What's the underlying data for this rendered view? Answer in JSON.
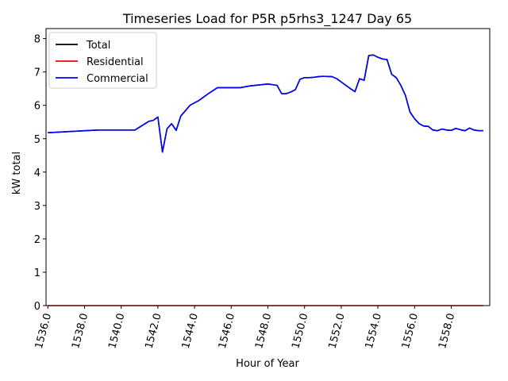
{
  "chart_data": {
    "type": "line",
    "title": "Timeseries Load for P5R p5rhs3_1247  Day 65",
    "xlabel": "Hour of Year",
    "ylabel": "kW total",
    "xlim": [
      1535.9,
      1560.1
    ],
    "ylim": [
      0,
      8.3
    ],
    "xticks": [
      1536,
      1538,
      1540,
      1542,
      1544,
      1546,
      1548,
      1550,
      1552,
      1554,
      1556,
      1558
    ],
    "xtick_labels": [
      "1536.0",
      "1538.0",
      "1540.0",
      "1542.0",
      "1544.0",
      "1546.0",
      "1548.0",
      "1550.0",
      "1552.0",
      "1554.0",
      "1556.0",
      "1558.0"
    ],
    "yticks": [
      0,
      1,
      2,
      3,
      4,
      5,
      6,
      7,
      8
    ],
    "ytick_labels": [
      "0",
      "1",
      "2",
      "3",
      "4",
      "5",
      "6",
      "7",
      "8"
    ],
    "grid": false,
    "legend_position": "top-left",
    "series": [
      {
        "name": "Total",
        "color": "#000000",
        "x": [
          1536.0,
          1537.0,
          1538.0,
          1538.75,
          1539.5,
          1540.0,
          1540.75,
          1541.5,
          1541.75,
          1542.0,
          1542.25,
          1542.5,
          1542.75,
          1543.0,
          1543.25,
          1543.75,
          1544.25,
          1544.75,
          1545.25,
          1546.0,
          1546.5,
          1547.0,
          1547.5,
          1548.0,
          1548.5,
          1548.75,
          1549.0,
          1549.25,
          1549.5,
          1549.75,
          1550.0,
          1550.25,
          1550.5,
          1550.75,
          1551.0,
          1551.5,
          1551.75,
          1552.0,
          1552.25,
          1552.5,
          1552.75,
          1553.0,
          1553.25,
          1553.5,
          1553.75,
          1554.0,
          1554.25,
          1554.5,
          1554.75,
          1555.0,
          1555.25,
          1555.5,
          1555.75,
          1556.0,
          1556.25,
          1556.5,
          1556.75,
          1557.0,
          1557.25,
          1557.5,
          1557.75,
          1558.0,
          1558.25,
          1558.5,
          1558.75,
          1559.0,
          1559.25,
          1559.5,
          1559.75
        ],
        "y": [
          5.18,
          5.21,
          5.24,
          5.26,
          5.26,
          5.26,
          5.26,
          5.52,
          5.55,
          5.65,
          4.6,
          5.3,
          5.45,
          5.25,
          5.68,
          6.0,
          6.15,
          6.35,
          6.53,
          6.53,
          6.53,
          6.58,
          6.61,
          6.64,
          6.6,
          6.35,
          6.35,
          6.4,
          6.47,
          6.78,
          6.83,
          6.83,
          6.84,
          6.86,
          6.87,
          6.86,
          6.8,
          6.7,
          6.6,
          6.5,
          6.41,
          6.8,
          6.75,
          7.49,
          7.51,
          7.44,
          7.39,
          7.37,
          6.93,
          6.83,
          6.6,
          6.3,
          5.8,
          5.6,
          5.45,
          5.38,
          5.37,
          5.26,
          5.24,
          5.29,
          5.26,
          5.25,
          5.31,
          5.27,
          5.24,
          5.32,
          5.26,
          5.24,
          5.24
        ]
      },
      {
        "name": "Residential",
        "color": "#ff0000",
        "x": [
          1536.0,
          1559.75
        ],
        "y": [
          0.0,
          0.0
        ]
      },
      {
        "name": "Commercial",
        "color": "#0000ff",
        "x": [
          1536.0,
          1537.0,
          1538.0,
          1538.75,
          1539.5,
          1540.0,
          1540.75,
          1541.5,
          1541.75,
          1542.0,
          1542.25,
          1542.5,
          1542.75,
          1543.0,
          1543.25,
          1543.75,
          1544.25,
          1544.75,
          1545.25,
          1546.0,
          1546.5,
          1547.0,
          1547.5,
          1548.0,
          1548.5,
          1548.75,
          1549.0,
          1549.25,
          1549.5,
          1549.75,
          1550.0,
          1550.25,
          1550.5,
          1550.75,
          1551.0,
          1551.5,
          1551.75,
          1552.0,
          1552.25,
          1552.5,
          1552.75,
          1553.0,
          1553.25,
          1553.5,
          1553.75,
          1554.0,
          1554.25,
          1554.5,
          1554.75,
          1555.0,
          1555.25,
          1555.5,
          1555.75,
          1556.0,
          1556.25,
          1556.5,
          1556.75,
          1557.0,
          1557.25,
          1557.5,
          1557.75,
          1558.0,
          1558.25,
          1558.5,
          1558.75,
          1559.0,
          1559.25,
          1559.5,
          1559.75
        ],
        "y": [
          5.18,
          5.21,
          5.24,
          5.26,
          5.26,
          5.26,
          5.26,
          5.52,
          5.55,
          5.65,
          4.6,
          5.3,
          5.45,
          5.25,
          5.68,
          6.0,
          6.15,
          6.35,
          6.53,
          6.53,
          6.53,
          6.58,
          6.61,
          6.64,
          6.6,
          6.35,
          6.35,
          6.4,
          6.47,
          6.78,
          6.83,
          6.83,
          6.84,
          6.86,
          6.87,
          6.86,
          6.8,
          6.7,
          6.6,
          6.5,
          6.41,
          6.8,
          6.75,
          7.49,
          7.51,
          7.44,
          7.39,
          7.37,
          6.93,
          6.83,
          6.6,
          6.3,
          5.8,
          5.6,
          5.45,
          5.38,
          5.37,
          5.26,
          5.24,
          5.29,
          5.26,
          5.25,
          5.31,
          5.27,
          5.24,
          5.32,
          5.26,
          5.24,
          5.24
        ]
      }
    ]
  }
}
